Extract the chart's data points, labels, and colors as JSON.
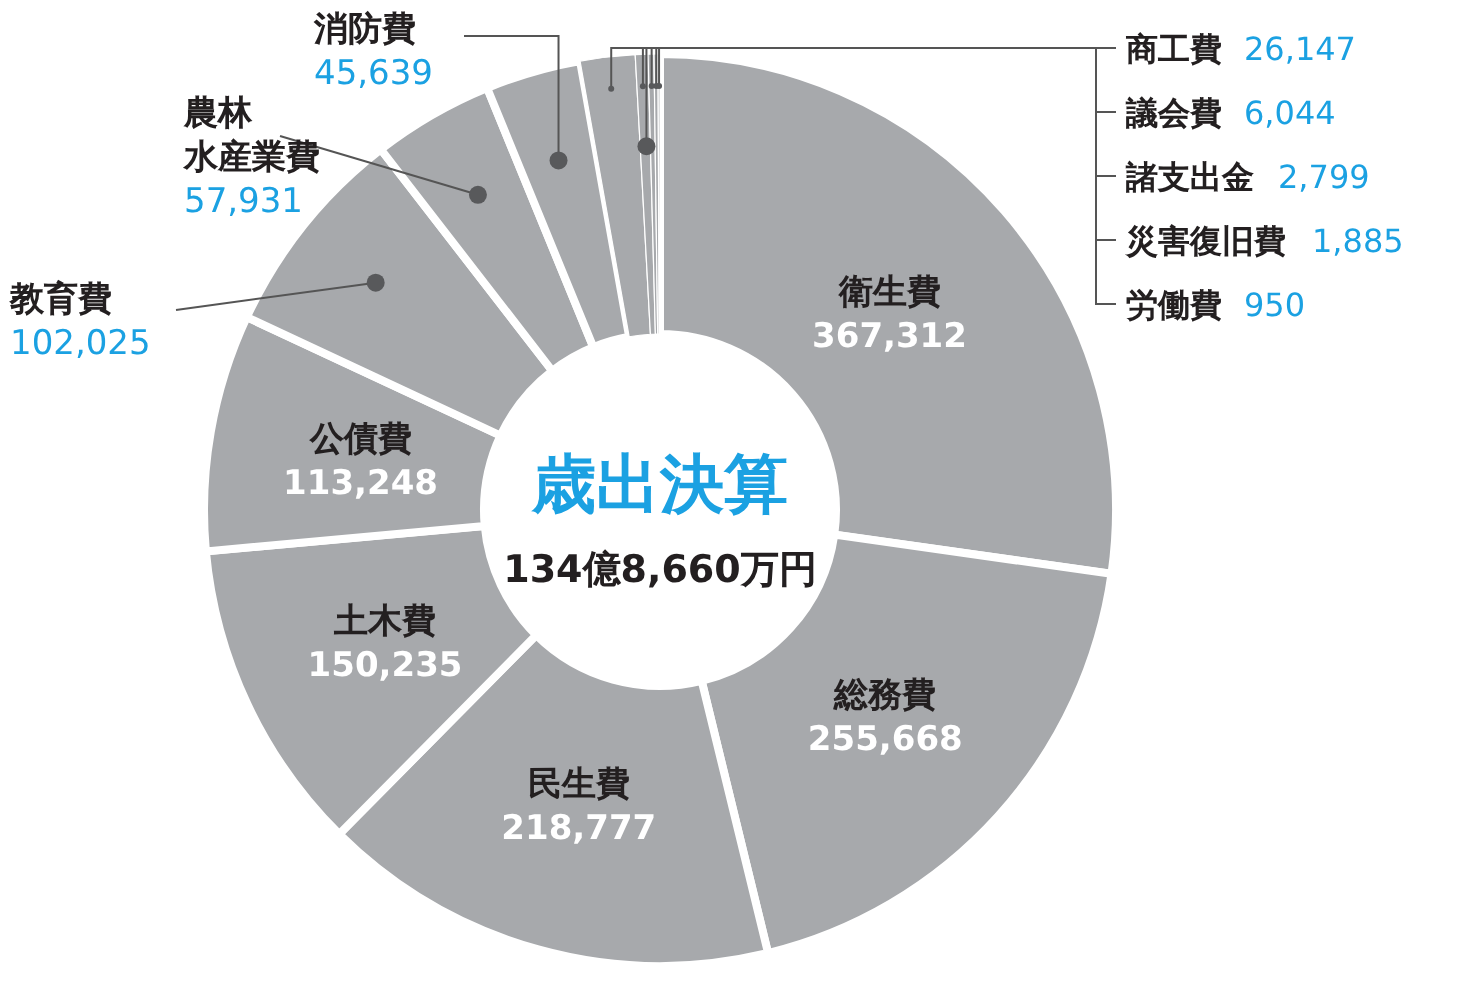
{
  "chart_data": {
    "type": "donut",
    "title": "歳出決算",
    "subtitle": "134億8,660万円",
    "categories": [
      "衛生費",
      "総務費",
      "民生費",
      "土木費",
      "公債費",
      "教育費",
      "農林水産業費",
      "消防費",
      "商工費",
      "議会費",
      "諸支出金",
      "災害復旧費",
      "労働費"
    ],
    "values": [
      367312,
      255668,
      218777,
      150235,
      113248,
      102025,
      57931,
      45639,
      26147,
      6044,
      2799,
      1885,
      950
    ],
    "value_labels": [
      "367,312",
      "255,668",
      "218,777",
      "150,235",
      "113,248",
      "102,025",
      "57,931",
      "45,639",
      "26,147",
      "6,044",
      "2,799",
      "1,885",
      "950"
    ],
    "colors": [
      "#a7a9ac",
      "#a7a9ac",
      "#a7a9ac",
      "#a7a9ac",
      "#a7a9ac",
      "#a7a9ac",
      "#a7a9ac",
      "#a7a9ac",
      "#a7a9ac",
      "#a7a9ac",
      "#a7a9ac",
      "#a7a9ac",
      "#a7a9ac"
    ]
  }
}
